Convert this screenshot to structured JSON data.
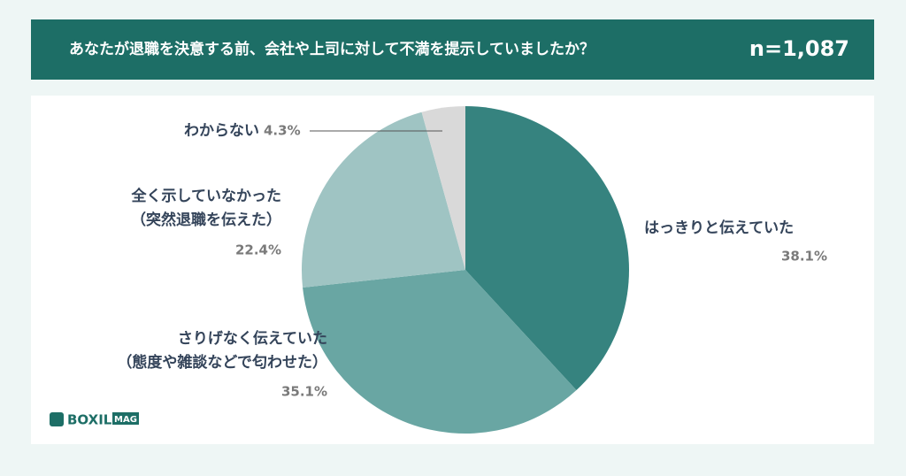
{
  "chart_data": {
    "type": "pie",
    "title": "あなたが退職を決意する前、会社や上司に対して不満を提示していましたか？",
    "annotation": "n=1,087",
    "categories": [
      "はっきりと伝えていた",
      "さりげなく伝えていた\n（態度や雑談などで匂わせた）",
      "全く示していなかった\n（突然退職を伝えた）",
      "わからない"
    ],
    "values": [
      38.1,
      35.1,
      22.4,
      4.3
    ],
    "value_labels": [
      "38.1%",
      "35.1%",
      "22.4%",
      "4.3%"
    ],
    "colors": [
      "#36837f",
      "#69a6a3",
      "#9fc4c3",
      "#d9d9d9"
    ],
    "logo": "BOXIL",
    "logo_badge": "MAG"
  }
}
